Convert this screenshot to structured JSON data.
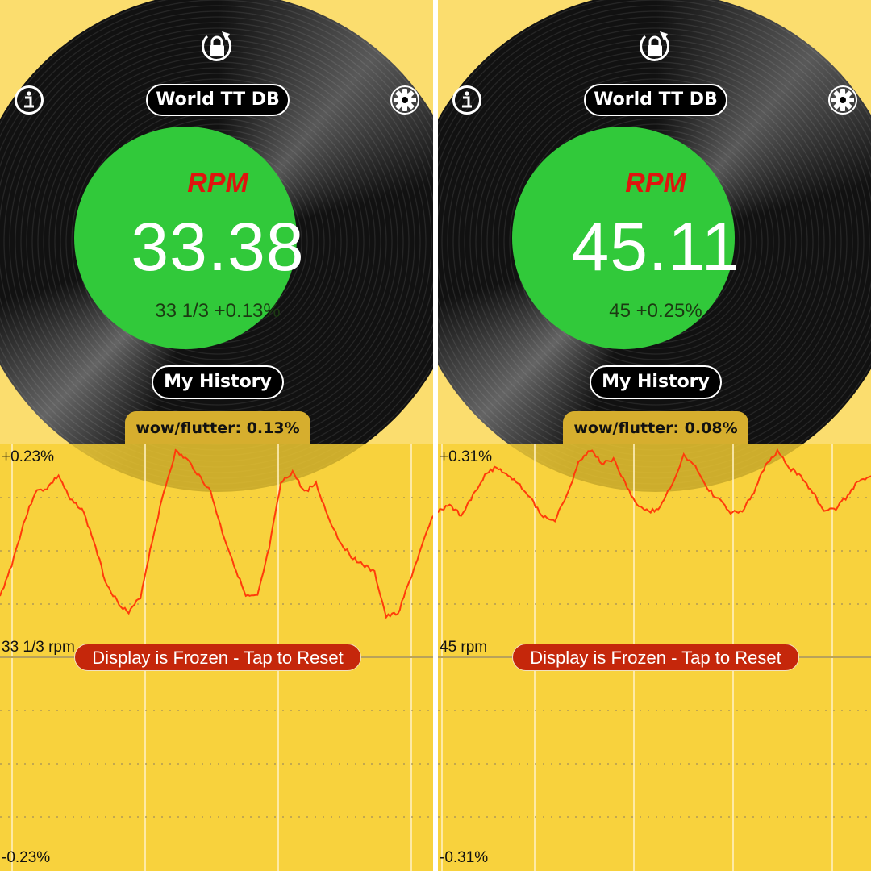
{
  "colors": {
    "background": "#fbdd6e",
    "chart_bg": "#f5cd33",
    "rpm_circle": "#31c93a",
    "rpm_label": "#e0140e",
    "trace": "#ff3b0a",
    "frozen_banner": "#c5270b"
  },
  "icons": {
    "top": "rotation-lock-icon",
    "left": "info-icon",
    "right": "gear-icon"
  },
  "panels": [
    {
      "db_button": "World TT DB",
      "rpm_label": "RPM",
      "rpm_value": "33.38",
      "rpm_sub": "33 1/3 +0.13%",
      "history_button": "My History",
      "wow_flutter": "wow/flutter:  0.13%",
      "chart_data": {
        "type": "line",
        "y_top_label": "+0.23%",
        "y_mid_label": "33 1/3 rpm",
        "y_bottom_label": "-0.23%",
        "ylim": [
          -0.23,
          0.23
        ],
        "grid": true,
        "values": [
          0.066,
          0.101,
          0.145,
          0.18,
          0.184,
          0.198,
          0.171,
          0.162,
          0.127,
          0.083,
          0.061,
          0.048,
          0.066,
          0.127,
          0.18,
          0.224,
          0.215,
          0.198,
          0.18,
          0.136,
          0.101,
          0.066,
          0.066,
          0.119,
          0.189,
          0.202,
          0.18,
          0.189,
          0.154,
          0.127,
          0.11,
          0.101,
          0.092,
          0.044,
          0.048,
          0.083,
          0.119,
          0.154
        ]
      },
      "frozen_banner": "Display is Frozen - Tap to Reset"
    },
    {
      "db_button": "World TT DB",
      "rpm_label": "RPM",
      "rpm_value": "45.11",
      "rpm_sub": "45 +0.25%",
      "history_button": "My History",
      "wow_flutter": "wow/flutter:  0.08%",
      "chart_data": {
        "type": "line",
        "y_top_label": "+0.31%",
        "y_mid_label": "45 rpm",
        "y_bottom_label": "-0.31%",
        "ylim": [
          -0.31,
          0.31
        ],
        "grid": true,
        "values": [
          0.213,
          0.225,
          0.207,
          0.237,
          0.266,
          0.28,
          0.266,
          0.254,
          0.231,
          0.207,
          0.201,
          0.237,
          0.284,
          0.305,
          0.284,
          0.29,
          0.254,
          0.225,
          0.213,
          0.219,
          0.254,
          0.296,
          0.278,
          0.248,
          0.231,
          0.213,
          0.213,
          0.243,
          0.284,
          0.302,
          0.278,
          0.266,
          0.243,
          0.213,
          0.219,
          0.237,
          0.26,
          0.266
        ]
      },
      "frozen_banner": "Display is Frozen - Tap to Reset"
    }
  ]
}
